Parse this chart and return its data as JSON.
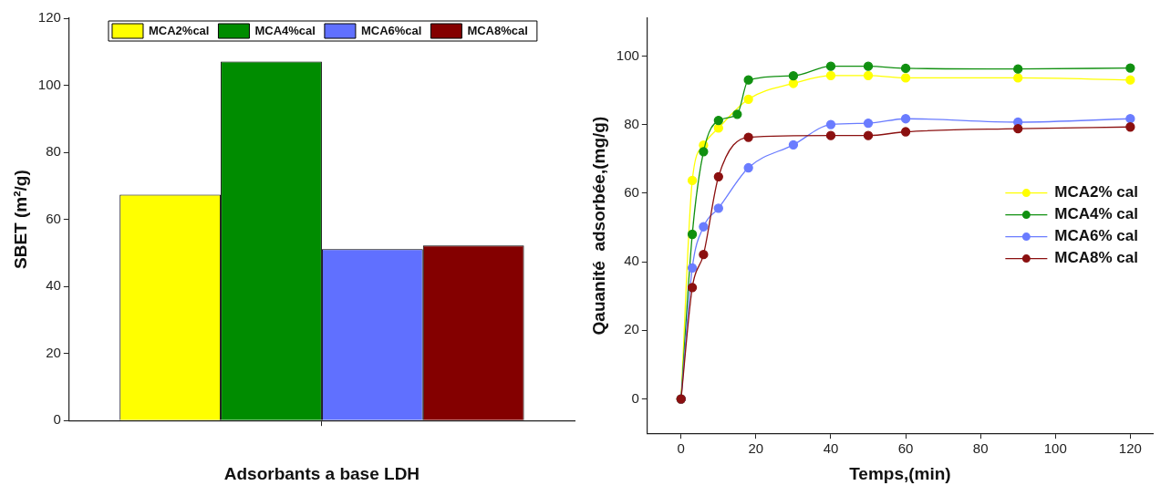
{
  "chart_data": [
    {
      "type": "bar",
      "xlabel": "Adsorbants a base LDH",
      "ylabel": "SBET (m²/g)",
      "categories": [
        null
      ],
      "ylim": [
        0,
        120
      ],
      "yticks": [
        0,
        20,
        40,
        60,
        80,
        100,
        120
      ],
      "legend": "top",
      "series": [
        {
          "name": "MCA2%cal",
          "color": "#ffff00",
          "values": [
            67.4
          ]
        },
        {
          "name": "MCA4%cal",
          "color": "#008c00",
          "values": [
            107.1
          ]
        },
        {
          "name": "MCA6%cal",
          "color": "#6070ff",
          "values": [
            51.1
          ]
        },
        {
          "name": "MCA8%cal",
          "color": "#840000",
          "values": [
            52.2
          ]
        }
      ]
    },
    {
      "type": "line",
      "xlabel": "Temps,(min)",
      "ylabel": "Qauanité  adsorbée,(mg/g)",
      "xlim": [
        -9,
        126
      ],
      "ylim": [
        -10,
        111
      ],
      "xticks": [
        0,
        20,
        40,
        60,
        80,
        100,
        120
      ],
      "yticks": [
        0,
        20,
        40,
        60,
        80,
        100
      ],
      "legend": "center right",
      "marker": "circle",
      "series": [
        {
          "name": "MCA2% cal",
          "color": "#ffff00",
          "x": [
            0,
            3,
            6,
            10,
            18,
            30,
            40,
            50,
            60,
            90,
            120
          ],
          "values": [
            0,
            63.7,
            74,
            79,
            87.4,
            92,
            94.3,
            94.3,
            93.6,
            93.6,
            93
          ]
        },
        {
          "name": "MCA4% cal",
          "color": "#109010",
          "x": [
            0,
            3,
            6,
            10,
            15,
            18,
            30,
            40,
            50,
            60,
            90,
            120
          ],
          "values": [
            0,
            48,
            72.1,
            81.2,
            83,
            93,
            94.2,
            97,
            97,
            96.4,
            96.2,
            96.5
          ]
        },
        {
          "name": "MCA6% cal",
          "color": "#6a7cff",
          "x": [
            0,
            3,
            6,
            10,
            18,
            30,
            40,
            50,
            60,
            90,
            120
          ],
          "values": [
            0,
            38.2,
            50.2,
            55.6,
            67.4,
            74.1,
            80,
            80.4,
            81.7,
            80.7,
            81.7
          ]
        },
        {
          "name": "MCA8% cal",
          "color": "#8b1010",
          "x": [
            0,
            3,
            6,
            10,
            18,
            40,
            50,
            60,
            90,
            120
          ],
          "values": [
            0,
            32.5,
            42.1,
            64.8,
            76.3,
            76.8,
            76.8,
            77.9,
            78.8,
            79.3
          ]
        }
      ]
    }
  ]
}
